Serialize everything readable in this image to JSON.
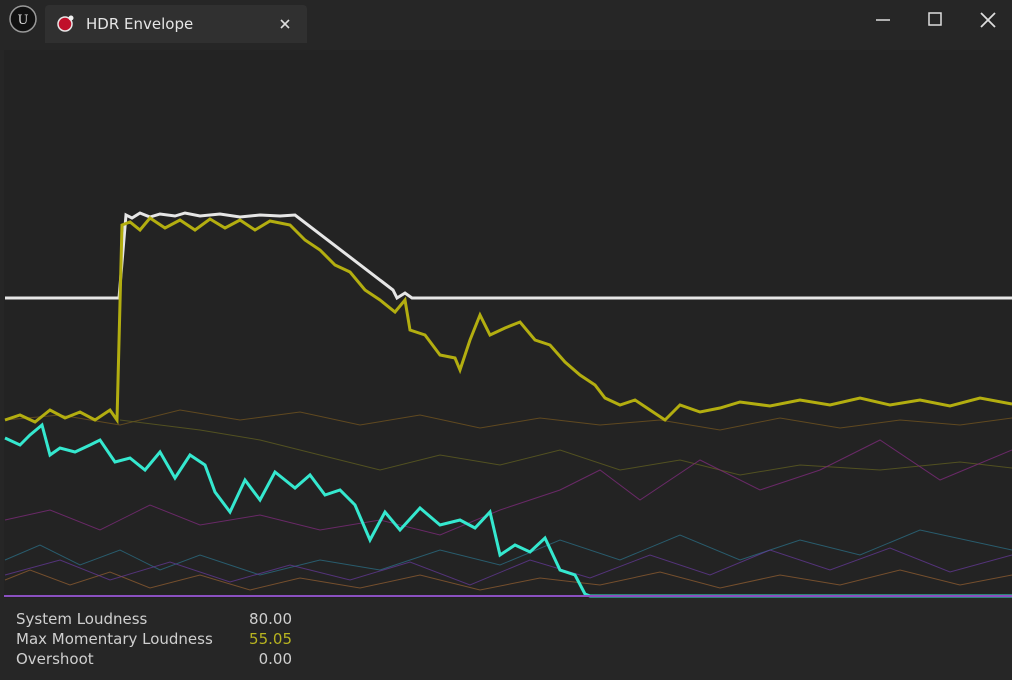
{
  "window": {
    "tab_title": "HDR Envelope"
  },
  "stats": [
    {
      "label": "System Loudness",
      "value": "80.00"
    },
    {
      "label": "Max Momentary Loudness",
      "value": "55.05"
    },
    {
      "label": "Overshoot",
      "value": "0.00"
    }
  ]
}
